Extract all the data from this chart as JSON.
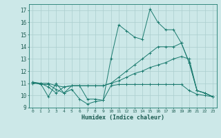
{
  "xlabel": "Humidex (Indice chaleur)",
  "bg_color": "#cce8e8",
  "grid_color": "#aacece",
  "line_color": "#1a7a6e",
  "xlim": [
    -0.5,
    23.5
  ],
  "ylim": [
    9,
    17.5
  ],
  "yticks": [
    9,
    10,
    11,
    12,
    13,
    14,
    15,
    16,
    17
  ],
  "xticks": [
    0,
    1,
    2,
    3,
    4,
    5,
    6,
    7,
    8,
    9,
    10,
    11,
    12,
    13,
    14,
    15,
    16,
    17,
    18,
    19,
    20,
    21,
    22,
    23
  ],
  "series": [
    [
      11.0,
      11.0,
      9.9,
      11.0,
      10.2,
      10.5,
      9.7,
      9.3,
      9.5,
      9.6,
      10.8,
      10.9,
      10.9,
      10.9,
      10.9,
      10.9,
      10.9,
      10.9,
      10.9,
      10.9,
      10.4,
      10.1,
      10.0,
      9.9
    ],
    [
      11.1,
      10.9,
      10.9,
      10.5,
      10.2,
      10.8,
      10.8,
      9.7,
      9.7,
      9.6,
      13.0,
      15.8,
      15.3,
      14.8,
      14.6,
      17.1,
      16.0,
      15.4,
      15.4,
      14.3,
      12.7,
      10.4,
      10.2,
      9.9
    ],
    [
      11.0,
      11.0,
      10.7,
      10.2,
      10.7,
      10.8,
      10.8,
      10.8,
      10.8,
      10.8,
      11.0,
      11.5,
      12.0,
      12.5,
      13.0,
      13.5,
      14.0,
      14.0,
      14.0,
      14.3,
      12.7,
      10.4,
      10.2,
      9.9
    ],
    [
      11.1,
      11.0,
      11.0,
      10.8,
      10.7,
      10.8,
      10.8,
      10.8,
      10.8,
      10.8,
      11.0,
      11.2,
      11.5,
      11.8,
      12.0,
      12.3,
      12.5,
      12.7,
      13.0,
      13.2,
      13.0,
      10.4,
      10.2,
      9.9
    ]
  ]
}
